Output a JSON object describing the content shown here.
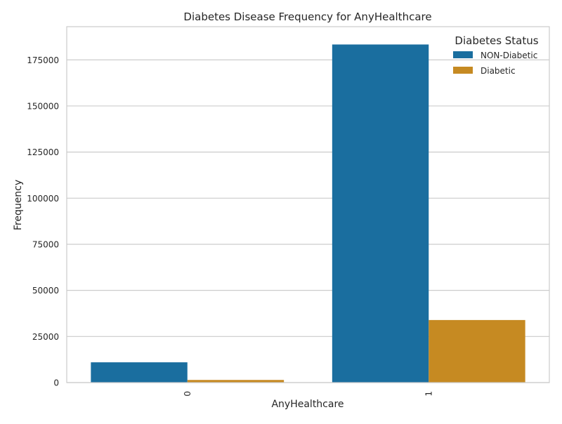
{
  "chart_data": {
    "type": "bar",
    "title": "Diabetes Disease Frequency for AnyHealthcare",
    "xlabel": "AnyHealthcare",
    "ylabel": "Frequency",
    "categories": [
      "0",
      "1"
    ],
    "series": [
      {
        "name": "NON-Diabetic",
        "values": [
          10995,
          183339
        ],
        "color": "#1a6e9f"
      },
      {
        "name": "Diabetic",
        "values": [
          1422,
          33924
        ],
        "color": "#c68a22"
      }
    ],
    "ylim": [
      0,
      193000
    ],
    "yticks": [
      0,
      25000,
      50000,
      75000,
      100000,
      125000,
      150000,
      175000
    ],
    "ytick_labels": [
      "0",
      "25000",
      "50000",
      "75000",
      "100000",
      "125000",
      "150000",
      "175000"
    ],
    "grid": "horizontal",
    "legend": {
      "title": "Diabetes Status",
      "position": "top-right"
    }
  }
}
